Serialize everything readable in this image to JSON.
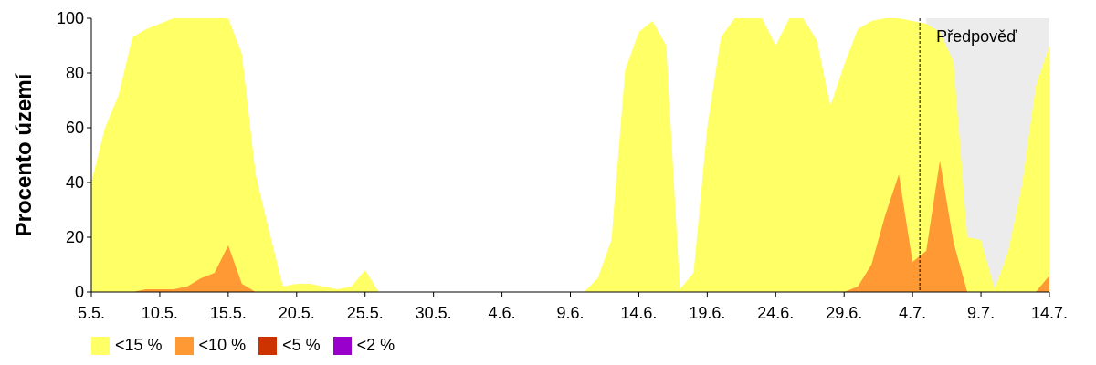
{
  "chart_data": {
    "type": "area",
    "title": "",
    "xlabel": "",
    "ylabel": "Procento území",
    "ylim": [
      0,
      100
    ],
    "yticks": [
      0,
      20,
      40,
      60,
      80,
      100
    ],
    "xlim": [
      0,
      70
    ],
    "x_tick_labels": [
      "5.5.",
      "10.5.",
      "15.5.",
      "20.5.",
      "25.5.",
      "30.5.",
      "4.6.",
      "9.6.",
      "14.6.",
      "19.6.",
      "24.6.",
      "29.6.",
      "4.7.",
      "9.7.",
      "14.7."
    ],
    "x_tick_days": [
      0,
      5,
      10,
      15,
      20,
      25,
      30,
      35,
      40,
      45,
      50,
      55,
      60,
      65,
      70
    ],
    "forecast": {
      "label": "Předpověď",
      "start_day": 61,
      "end_day": 70,
      "shade": "#ececec"
    },
    "grid": false,
    "legend": "bottom-left",
    "series": [
      {
        "name": "<15 %",
        "color": "#ffff66",
        "x": [
          0,
          1,
          2,
          3,
          4,
          5,
          6,
          7,
          8,
          9,
          10,
          11,
          12,
          13,
          14,
          15,
          16,
          17,
          18,
          19,
          20,
          21,
          22,
          23,
          24,
          25,
          26,
          27,
          28,
          29,
          30,
          31,
          32,
          33,
          34,
          35,
          36,
          37,
          38,
          39,
          40,
          41,
          42,
          43,
          44,
          45,
          46,
          47,
          48,
          49,
          50,
          51,
          52,
          53,
          54,
          55,
          56,
          57,
          58,
          59,
          60,
          61,
          62,
          63,
          64,
          65,
          66,
          67,
          68,
          69,
          70
        ],
        "values": [
          40,
          60,
          72,
          93,
          96,
          98,
          100,
          100,
          100,
          100,
          100,
          87,
          43,
          22,
          2,
          3,
          3,
          2,
          1,
          2,
          8,
          0,
          0,
          0,
          0,
          0,
          0,
          0,
          0,
          0,
          0,
          0,
          0,
          0,
          0,
          0,
          0,
          5,
          19,
          81,
          95,
          99,
          90,
          1,
          7,
          60,
          93,
          100,
          100,
          100,
          90,
          100,
          100,
          92,
          68,
          83,
          96,
          99,
          100,
          100,
          99,
          98,
          95,
          84,
          20,
          19,
          1,
          15,
          39,
          75,
          90
        ]
      },
      {
        "name": "<10 %",
        "color": "#ff9933",
        "x": [
          0,
          1,
          2,
          3,
          4,
          5,
          6,
          7,
          8,
          9,
          10,
          11,
          12,
          13,
          14,
          15,
          16,
          17,
          18,
          19,
          20,
          21,
          22,
          23,
          24,
          25,
          26,
          27,
          28,
          29,
          30,
          31,
          32,
          33,
          34,
          35,
          36,
          37,
          38,
          39,
          40,
          41,
          42,
          43,
          44,
          45,
          46,
          47,
          48,
          49,
          50,
          51,
          52,
          53,
          54,
          55,
          56,
          57,
          58,
          59,
          60,
          61,
          62,
          63,
          64,
          65,
          66,
          67,
          68,
          69,
          70
        ],
        "values": [
          0,
          0,
          0,
          0,
          1,
          1,
          1,
          2,
          5,
          7,
          17,
          3,
          0,
          0,
          0,
          0,
          0,
          0,
          0,
          0,
          0,
          0,
          0,
          0,
          0,
          0,
          0,
          0,
          0,
          0,
          0,
          0,
          0,
          0,
          0,
          0,
          0,
          0,
          0,
          0,
          0,
          0,
          0,
          0,
          0,
          0,
          0,
          0,
          0,
          0,
          0,
          0,
          0,
          0,
          0,
          0,
          2,
          10,
          28,
          43,
          11,
          15,
          48,
          18,
          0,
          0,
          0,
          0,
          0,
          0,
          6
        ]
      },
      {
        "name": "<5 %",
        "color": "#cc3300",
        "x": [],
        "values": []
      },
      {
        "name": "<2 %",
        "color": "#9900cc",
        "x": [],
        "values": []
      }
    ]
  }
}
